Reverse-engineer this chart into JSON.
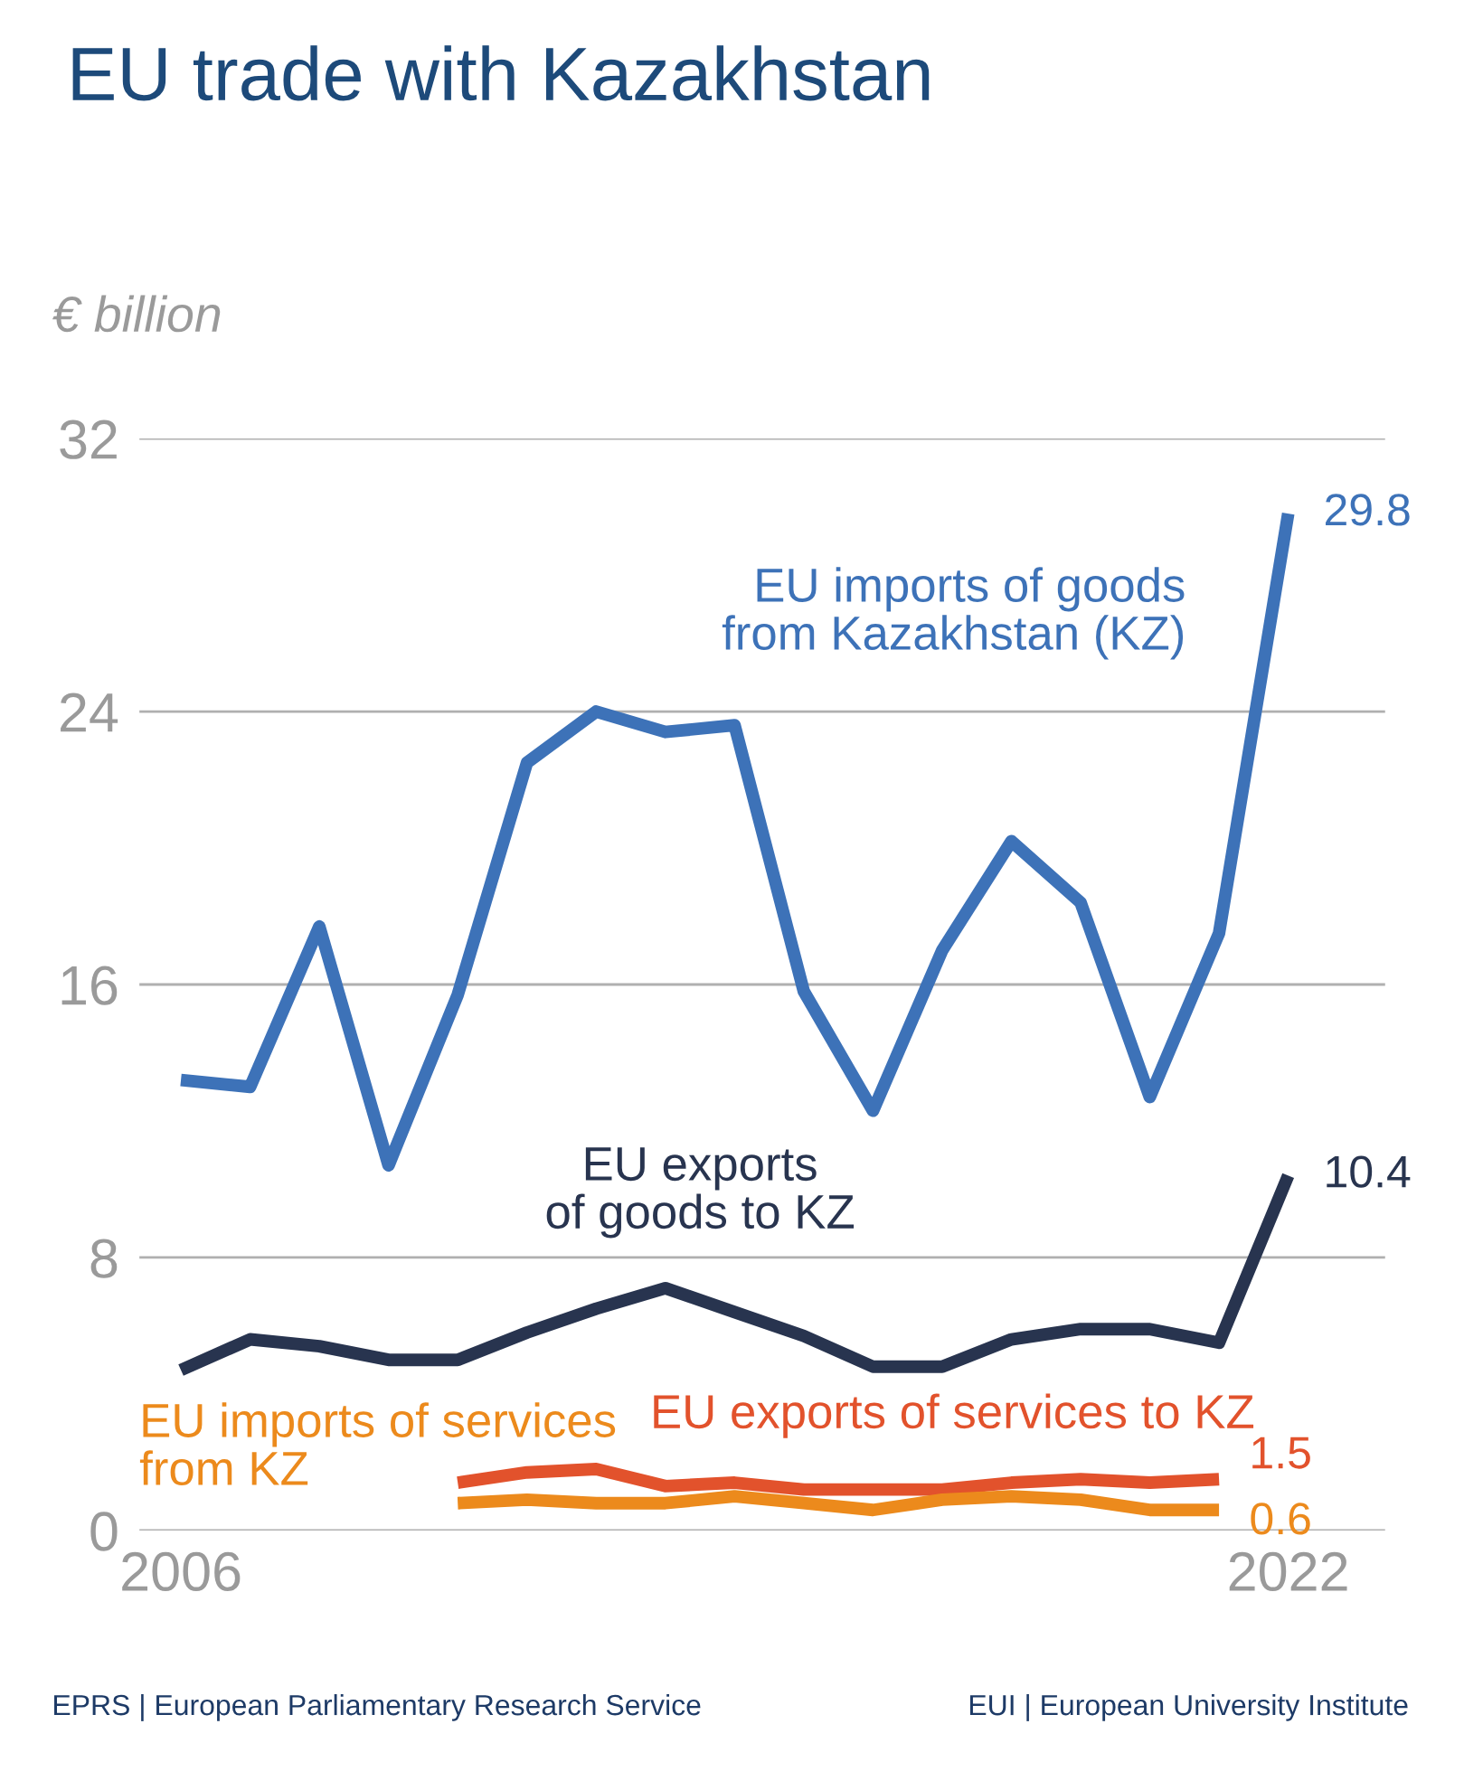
{
  "chart_data": {
    "type": "line",
    "title": "EU trade with Kazakhstan",
    "ylabel": "€ billion",
    "x": [
      2006,
      2007,
      2008,
      2009,
      2010,
      2011,
      2012,
      2013,
      2014,
      2015,
      2016,
      2017,
      2018,
      2019,
      2020,
      2021,
      2022
    ],
    "series": [
      {
        "name": "EU imports of goods\nfrom Kazakhstan (KZ)",
        "color": "#3d72b8",
        "values": [
          13.2,
          13.0,
          17.7,
          10.7,
          15.7,
          22.5,
          24.0,
          23.4,
          23.6,
          15.8,
          12.3,
          17.0,
          20.2,
          18.4,
          12.7,
          17.5,
          29.8
        ],
        "value_labels": [
          null,
          null,
          null,
          null,
          null,
          null,
          null,
          null,
          null,
          null,
          null,
          null,
          null,
          null,
          null,
          null,
          "29.8"
        ]
      },
      {
        "name": "EU exports\nof goods to KZ",
        "color": "#28344f",
        "values": [
          4.7,
          5.6,
          5.4,
          5.0,
          5.0,
          5.8,
          6.5,
          7.1,
          6.4,
          5.7,
          4.8,
          4.8,
          5.6,
          5.9,
          5.9,
          5.5,
          10.4
        ],
        "value_labels": [
          null,
          null,
          null,
          null,
          null,
          null,
          null,
          null,
          null,
          null,
          null,
          null,
          null,
          null,
          null,
          null,
          "10.4"
        ]
      },
      {
        "name": "EU exports of services to KZ",
        "color": "#e2522c",
        "values": [
          null,
          null,
          null,
          null,
          1.4,
          1.7,
          1.8,
          1.3,
          1.4,
          1.2,
          1.2,
          1.2,
          1.4,
          1.5,
          1.4,
          1.5,
          null
        ],
        "value_labels": [
          null,
          null,
          null,
          null,
          null,
          null,
          null,
          null,
          null,
          null,
          null,
          null,
          null,
          null,
          null,
          "1.5",
          null
        ]
      },
      {
        "name": "EU imports of services\nfrom KZ",
        "color": "#ec8a1c",
        "values": [
          null,
          null,
          null,
          null,
          0.8,
          0.9,
          0.8,
          0.8,
          1.0,
          0.8,
          0.6,
          0.9,
          1.0,
          0.9,
          0.6,
          0.6,
          null
        ],
        "value_labels": [
          null,
          null,
          null,
          null,
          null,
          null,
          null,
          null,
          null,
          null,
          null,
          null,
          null,
          null,
          null,
          "0.6",
          null
        ]
      }
    ],
    "xlim": [
      2005.4,
      2023.4
    ],
    "xticks": [
      2006,
      2022
    ],
    "ylim": [
      0,
      32
    ],
    "yticks": [
      0,
      8,
      16,
      24,
      32
    ],
    "grid": "y",
    "legend": false,
    "marker": "none",
    "line_style": "solid",
    "annotations": [
      "EPRS | European Parliamentary Research Service",
      "EUI | European University Institute"
    ]
  }
}
